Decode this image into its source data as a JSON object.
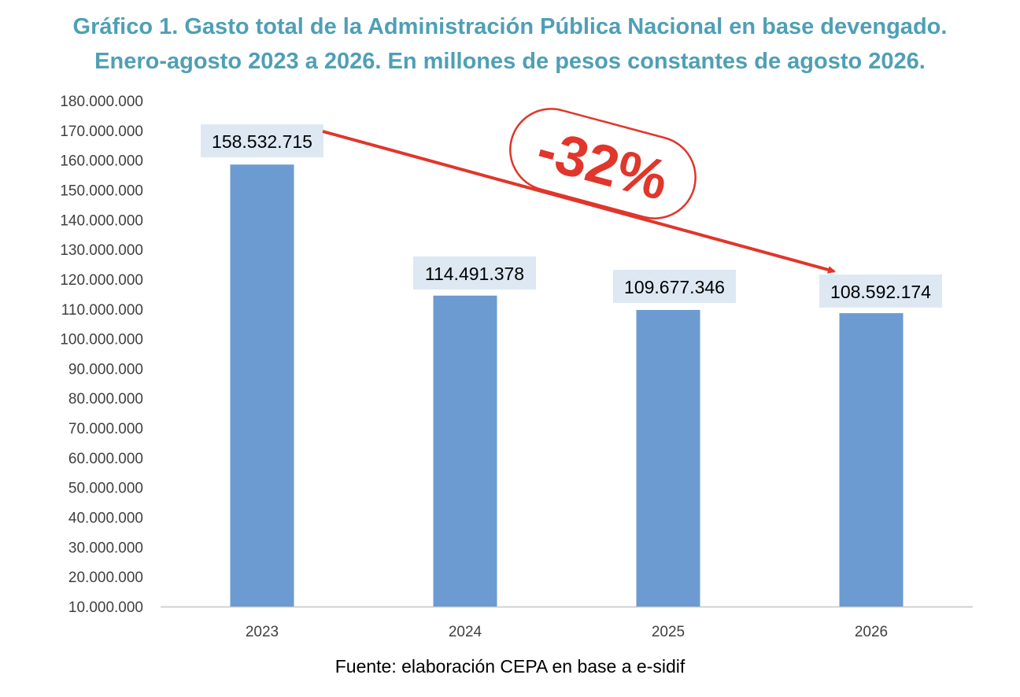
{
  "title_line1": "Gráfico 1. Gasto total de la Administración Pública Nacional en base devengado.",
  "title_line2": "Enero-agosto 2023 a 2026. En millones de pesos constantes de agosto 2026.",
  "source": "Fuente: elaboración CEPA en base a e-sidif",
  "colors": {
    "title": "#4f9fb5",
    "bar": "#6b9bd1",
    "label_bg": "#dde8f3",
    "annotation": "#e0362b",
    "axis": "#d0d0d0"
  },
  "chart_data": {
    "type": "bar",
    "categories": [
      "2023",
      "2024",
      "2025",
      "2026"
    ],
    "values": [
      158532715,
      114491378,
      109677346,
      108592174
    ],
    "data_labels": [
      "158.532.715",
      "114.491.378",
      "109.677.346",
      "108.592.174"
    ],
    "ylim": [
      10000000,
      180000000
    ],
    "yticks": [
      10000000,
      20000000,
      30000000,
      40000000,
      50000000,
      60000000,
      70000000,
      80000000,
      90000000,
      100000000,
      110000000,
      120000000,
      130000000,
      140000000,
      150000000,
      160000000,
      170000000,
      180000000
    ],
    "ytick_labels": [
      "10.000.000",
      "20.000.000",
      "30.000.000",
      "40.000.000",
      "50.000.000",
      "60.000.000",
      "70.000.000",
      "80.000.000",
      "90.000.000",
      "100.000.000",
      "110.000.000",
      "120.000.000",
      "130.000.000",
      "140.000.000",
      "150.000.000",
      "160.000.000",
      "170.000.000",
      "180.000.000"
    ],
    "grid": false,
    "annotation": {
      "text": "-32%",
      "from_category": "2023",
      "to_category": "2026"
    }
  }
}
